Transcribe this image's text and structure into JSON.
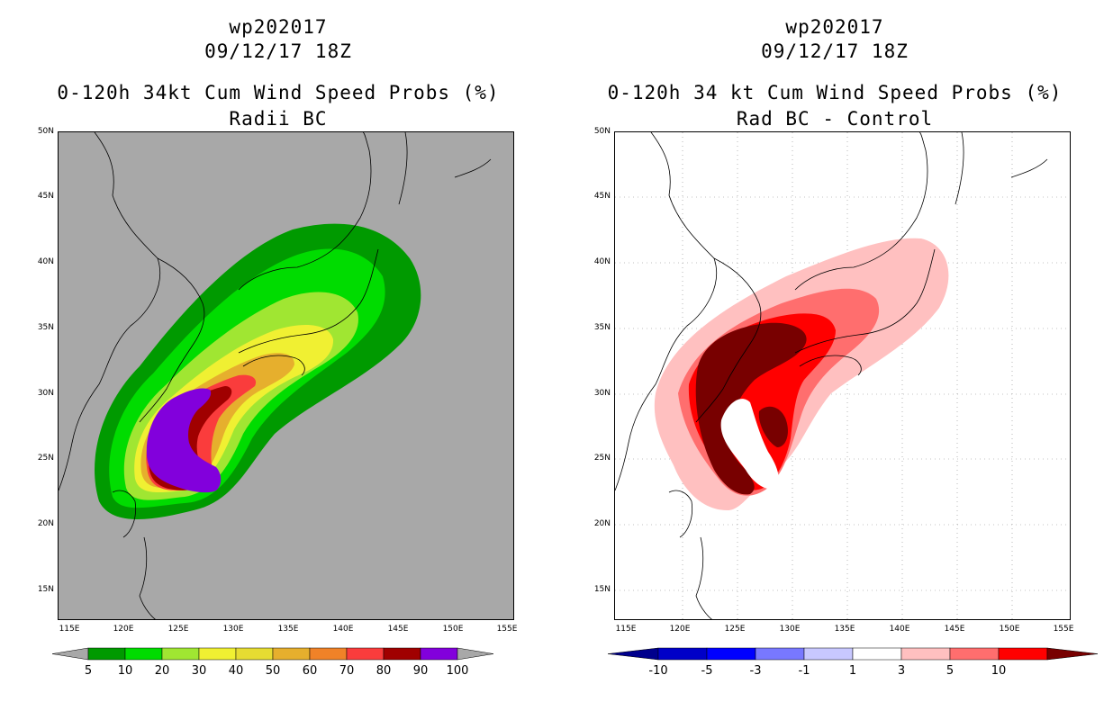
{
  "left": {
    "storm": "wp202017",
    "datetime": "09/12/17 18Z",
    "title": "0-120h 34kt Cum Wind Speed Probs (%)",
    "subtitle": "Radii BC",
    "colorbar": {
      "labels": [
        "5",
        "10",
        "20",
        "30",
        "40",
        "50",
        "60",
        "70",
        "80",
        "90",
        "100"
      ],
      "colors": [
        "#009a00",
        "#00dc00",
        "#a0e632",
        "#f0f032",
        "#e6dc32",
        "#e6af2d",
        "#f08228",
        "#fa3c3c",
        "#a00000",
        "#8200dc"
      ]
    }
  },
  "right": {
    "storm": "wp202017",
    "datetime": "09/12/17 18Z",
    "title": "0-120h 34 kt Cum Wind Speed Probs (%)",
    "subtitle": "Rad BC - Control",
    "colorbar": {
      "labels": [
        "-10",
        "-5",
        "-3",
        "-1",
        "1",
        "3",
        "5",
        "10"
      ],
      "colors": [
        "#0000c8",
        "#0000ff",
        "#7878ff",
        "#c8c8ff",
        "#ffffff",
        "#ffc0c0",
        "#ff6e6e",
        "#ff0000"
      ],
      "low_arrow": "#00008c",
      "high_arrow": "#780000"
    }
  },
  "axes": {
    "lat_labels": [
      "50N",
      "45N",
      "40N",
      "35N",
      "30N",
      "25N",
      "20N",
      "15N"
    ],
    "lon_labels": [
      "115E",
      "120E",
      "125E",
      "130E",
      "135E",
      "140E",
      "145E",
      "150E",
      "155E"
    ]
  }
}
